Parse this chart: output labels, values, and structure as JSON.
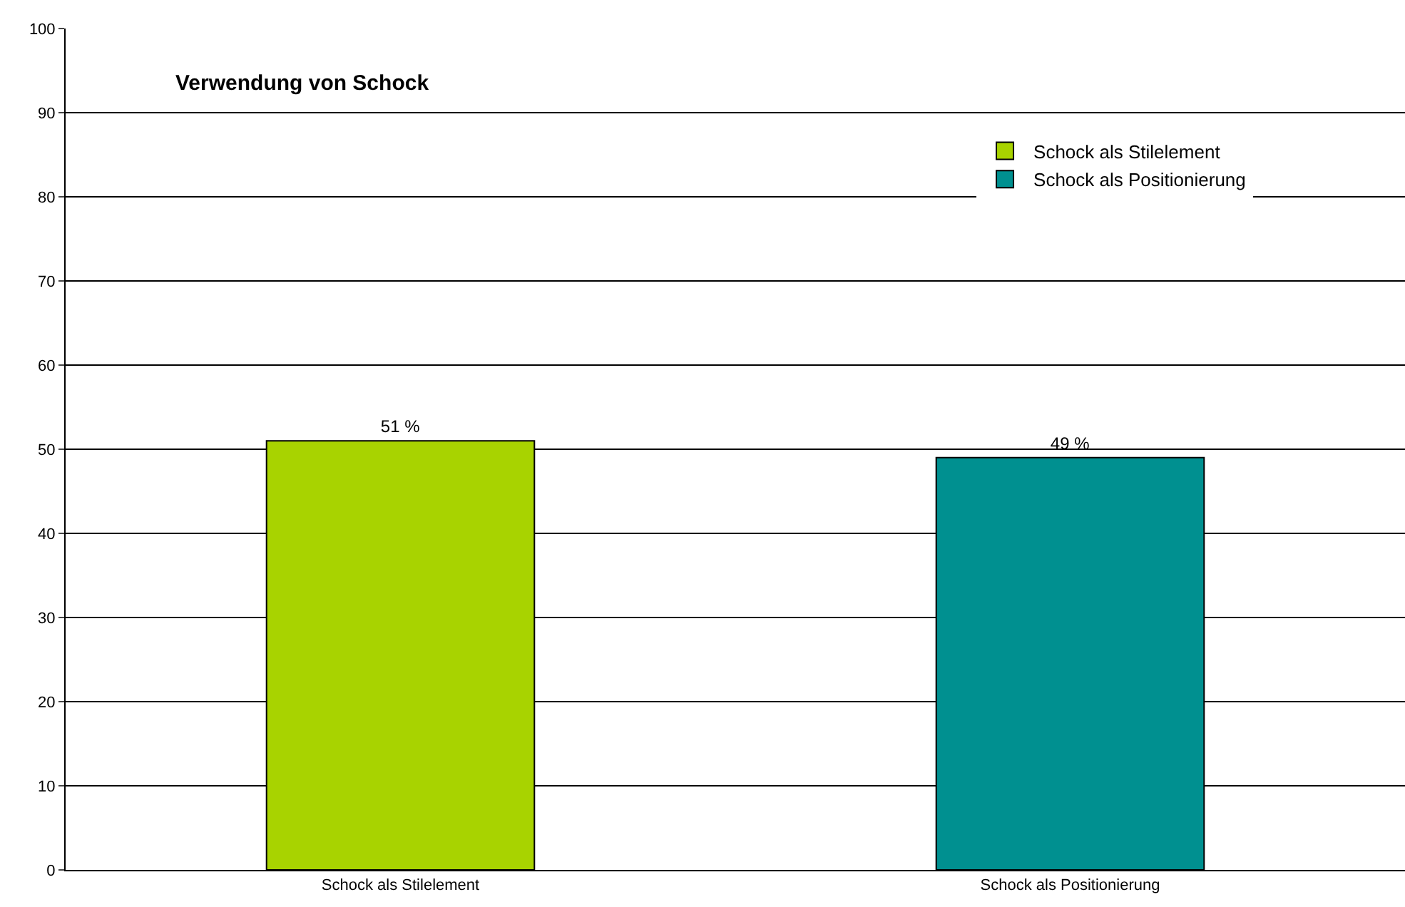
{
  "chart_data": {
    "type": "bar",
    "title": "Verwendung von Schock",
    "categories": [
      "Schock als Stilelement",
      "Schock als Positionierung"
    ],
    "series": [
      {
        "name": "Schock als Stilelement",
        "color": "#a8d300",
        "values": [
          51,
          null
        ],
        "value_labels": [
          "51 %",
          null
        ]
      },
      {
        "name": "Schock als Positionierung",
        "color": "#009090",
        "values": [
          null,
          49
        ],
        "value_labels": [
          null,
          "49 %"
        ]
      }
    ],
    "stacked": true,
    "ylim": [
      0,
      100
    ],
    "yticks": [
      0,
      10,
      20,
      30,
      40,
      50,
      60,
      70,
      80,
      90,
      100
    ],
    "grid": "y",
    "legend": "top right"
  }
}
